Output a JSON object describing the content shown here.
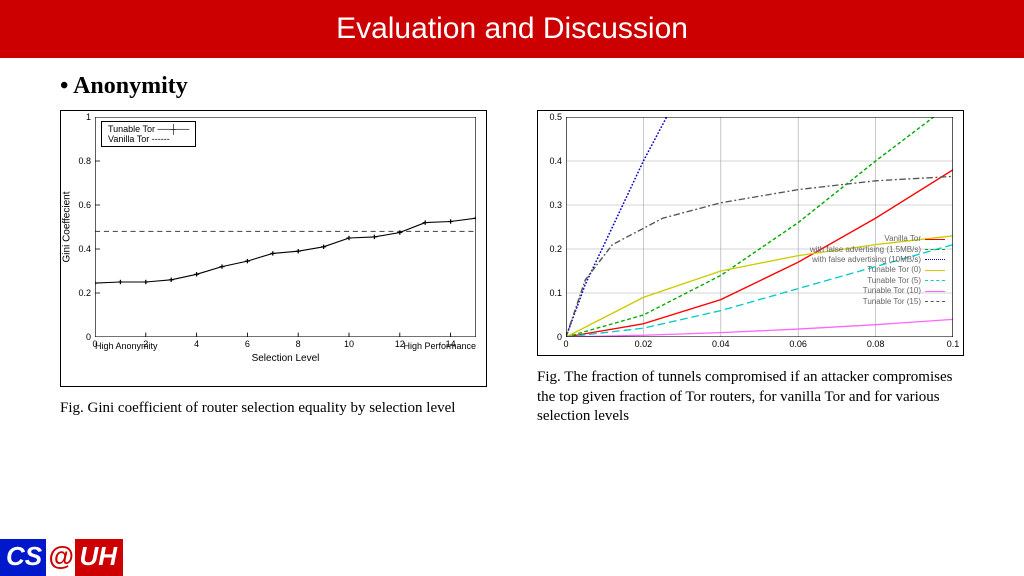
{
  "header": {
    "title": "Evaluation and Discussion"
  },
  "section": {
    "bullet": "•",
    "title": "Anonymity"
  },
  "logo": {
    "cs": "CS",
    "at": "@",
    "uh": "UH"
  },
  "chart_left": {
    "type": "line",
    "ylabel": "Gini Coeffecient",
    "xlabel": "Selection Level",
    "xlim": [
      0,
      15
    ],
    "ylim": [
      0,
      1
    ],
    "xticks": [
      0,
      2,
      4,
      6,
      8,
      10,
      12,
      14
    ],
    "yticks": [
      0,
      0.2,
      0.4,
      0.6,
      0.8,
      1
    ],
    "x_bottom_left": "High Anonymity",
    "x_bottom_right": "High Performance",
    "legend": [
      {
        "label": "Tunable Tor",
        "style": "solid-cross"
      },
      {
        "label": "Vanilla Tor",
        "style": "dashed"
      }
    ],
    "vanilla_y": 0.48,
    "tunable_points": [
      [
        0,
        0.245
      ],
      [
        1,
        0.25
      ],
      [
        2,
        0.25
      ],
      [
        3,
        0.26
      ],
      [
        4,
        0.285
      ],
      [
        5,
        0.32
      ],
      [
        6,
        0.345
      ],
      [
        7,
        0.38
      ],
      [
        8,
        0.39
      ],
      [
        9,
        0.41
      ],
      [
        10,
        0.45
      ],
      [
        11,
        0.455
      ],
      [
        12,
        0.475
      ],
      [
        13,
        0.52
      ],
      [
        14,
        0.525
      ],
      [
        15,
        0.54
      ]
    ],
    "caption": "Fig. Gini coefficient of router selection equality by selection level",
    "colors": {
      "line": "#000000",
      "dash": "#555555",
      "border": "#000000"
    }
  },
  "chart_right": {
    "type": "line",
    "xlim": [
      0,
      0.1
    ],
    "ylim": [
      0,
      0.5
    ],
    "xticks": [
      0,
      0.02,
      0.04,
      0.06,
      0.08,
      0.1
    ],
    "yticks": [
      0,
      0.1,
      0.2,
      0.3,
      0.4,
      0.5
    ],
    "grid_color": "#cccccc",
    "series": [
      {
        "label": "Vanilla Tor",
        "color": "#ff0000",
        "dash": "solid",
        "pts": [
          [
            0,
            0
          ],
          [
            0.02,
            0.03
          ],
          [
            0.04,
            0.085
          ],
          [
            0.06,
            0.17
          ],
          [
            0.08,
            0.27
          ],
          [
            0.1,
            0.38
          ]
        ]
      },
      {
        "label": "with false advertising (1.5MB/s)",
        "color": "#00aa00",
        "dash": "short",
        "pts": [
          [
            0,
            0
          ],
          [
            0.02,
            0.05
          ],
          [
            0.04,
            0.14
          ],
          [
            0.06,
            0.26
          ],
          [
            0.08,
            0.4
          ],
          [
            0.095,
            0.5
          ]
        ]
      },
      {
        "label": "with false advertising (10MB/s)",
        "color": "#0000cc",
        "dash": "dot",
        "pts": [
          [
            0,
            0
          ],
          [
            0.005,
            0.12
          ],
          [
            0.012,
            0.25
          ],
          [
            0.02,
            0.4
          ],
          [
            0.026,
            0.5
          ]
        ]
      },
      {
        "label": "Tunable Tor (0)",
        "color": "#cccc00",
        "dash": "solid",
        "pts": [
          [
            0,
            0
          ],
          [
            0.02,
            0.09
          ],
          [
            0.04,
            0.15
          ],
          [
            0.06,
            0.185
          ],
          [
            0.08,
            0.21
          ],
          [
            0.1,
            0.23
          ]
        ]
      },
      {
        "label": "Tunable Tor (5)",
        "color": "#00cccc",
        "dash": "long",
        "pts": [
          [
            0,
            0
          ],
          [
            0.02,
            0.02
          ],
          [
            0.04,
            0.06
          ],
          [
            0.06,
            0.11
          ],
          [
            0.08,
            0.16
          ],
          [
            0.1,
            0.21
          ]
        ]
      },
      {
        "label": "Tunable Tor (10)",
        "color": "#ff66ff",
        "dash": "solid",
        "pts": [
          [
            0,
            0
          ],
          [
            0.02,
            0.004
          ],
          [
            0.04,
            0.01
          ],
          [
            0.06,
            0.018
          ],
          [
            0.08,
            0.028
          ],
          [
            0.1,
            0.04
          ]
        ]
      },
      {
        "label": "Tunable Tor (15)",
        "color": "#555555",
        "dash": "dashdot",
        "pts": [
          [
            0,
            0
          ],
          [
            0.005,
            0.13
          ],
          [
            0.012,
            0.21
          ],
          [
            0.025,
            0.27
          ],
          [
            0.04,
            0.305
          ],
          [
            0.06,
            0.335
          ],
          [
            0.08,
            0.355
          ],
          [
            0.1,
            0.365
          ]
        ]
      }
    ],
    "caption": "Fig. The fraction of tunnels compromised if an attacker compromises the top given fraction of Tor routers, for vanilla Tor and for various selection levels"
  }
}
